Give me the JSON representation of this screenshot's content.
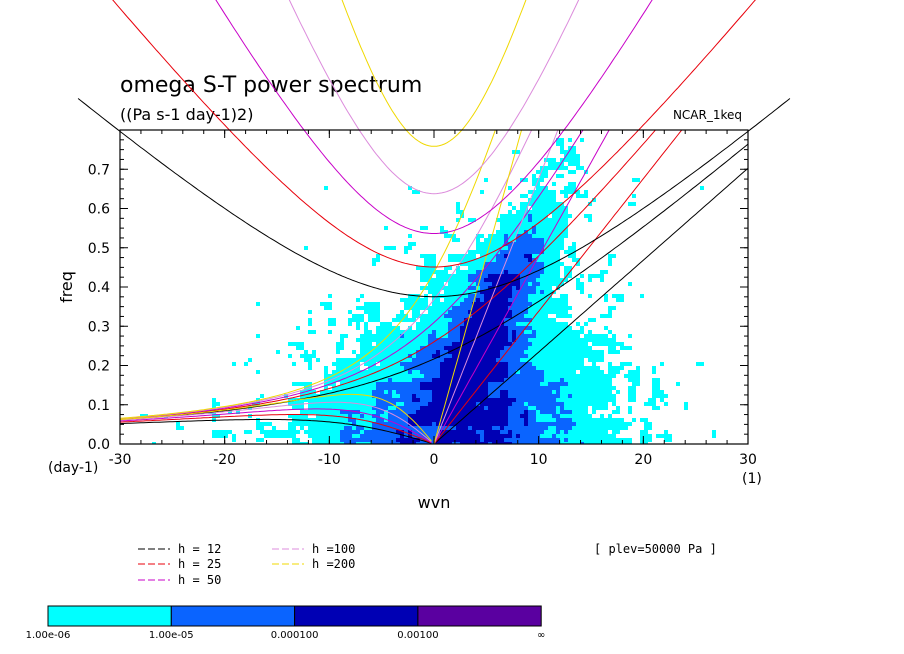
{
  "chart_data": {
    "type": "heatmap",
    "title": "omega S-T power spectrum",
    "subtitle": "((Pa s-1 day-1)2)",
    "model_label": "NCAR_1keq",
    "xlabel": "wvn",
    "ylabel": "freq",
    "y_unit_label": "(day-1)",
    "x_unit_label": "(1)",
    "xlim": [
      -30,
      30
    ],
    "ylim": [
      0,
      0.8
    ],
    "x_ticks": [
      "-30",
      "-20",
      "-10",
      "0",
      "10",
      "20",
      "30"
    ],
    "y_ticks": [
      "0.0",
      "0.1",
      "0.2",
      "0.3",
      "0.4",
      "0.5",
      "0.6",
      "0.7"
    ],
    "plev_label": "[ plev=50000 Pa ]",
    "dispersion_curves": [
      {
        "name": "h = 12",
        "color": "#000000"
      },
      {
        "name": "h = 25",
        "color": "#e8000b"
      },
      {
        "name": "h = 50",
        "color": "#c800c8"
      },
      {
        "name": "h =100",
        "color": "#dc8cdc"
      },
      {
        "name": "h =200",
        "color": "#f0d800"
      }
    ],
    "contour_levels": [
      {
        "label": "1.00e-06",
        "color": "#00ffff"
      },
      {
        "label": "1.00e-05",
        "color": "#0a64ff"
      },
      {
        "label": "0.000100",
        "color": "#0000b4"
      },
      {
        "label": "0.00100",
        "color": "#5a00a0"
      },
      {
        "label": "∞",
        "color": ""
      }
    ],
    "grid": false,
    "legend_position": "bottom-left"
  }
}
